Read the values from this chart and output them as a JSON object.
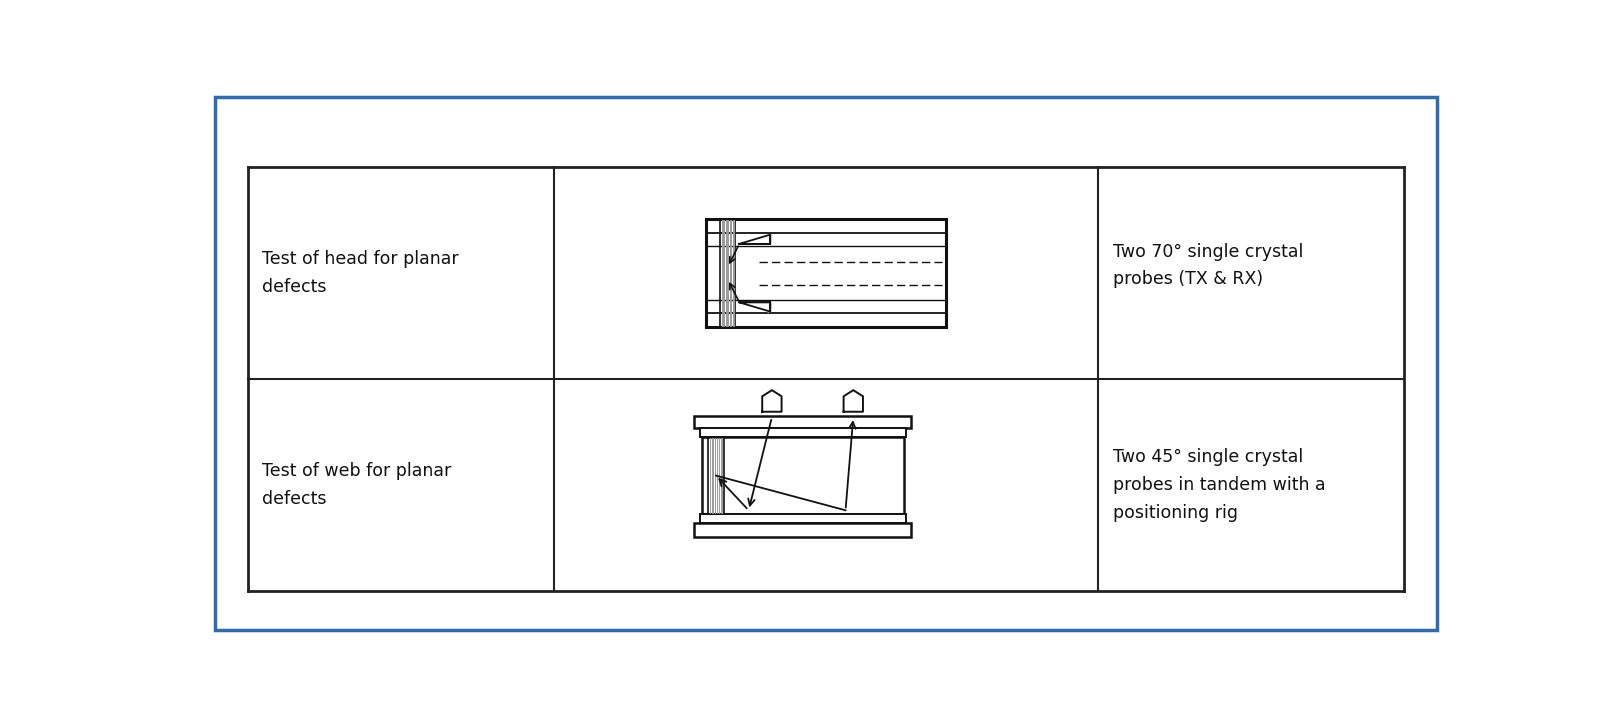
{
  "background_color": "#ffffff",
  "border_color": "#2d6bb5",
  "border_linewidth": 2.5,
  "table_border_color": "#222222",
  "table_border_linewidth": 1.5,
  "row1_label": "Test of head for planar\ndefects",
  "row2_label": "Test of web for planar\ndefects",
  "row1_desc": "Two 70° single crystal\nprobes (TX & RX)",
  "row2_desc": "Two 45° single crystal\nprobes in tandem with a\npositioning rig",
  "text_color": "#111111",
  "text_fontsize": 12.5,
  "diagram_color": "#111111"
}
